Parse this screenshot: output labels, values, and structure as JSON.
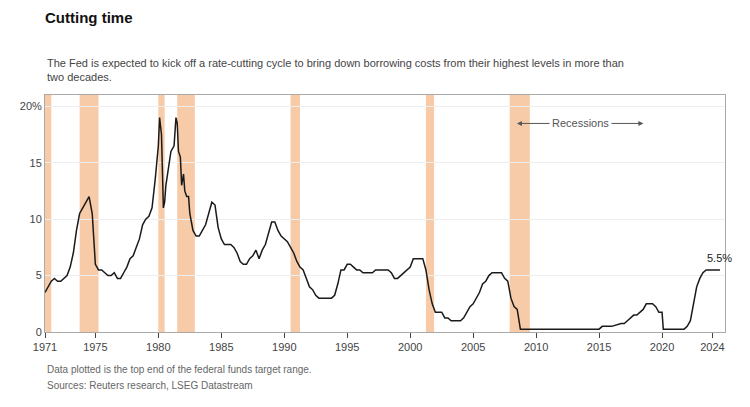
{
  "chart_data": {
    "type": "line",
    "title": "Cutting time",
    "subtitle": "The Fed is expected to kick off a rate-cutting cycle to bring down borrowing costs from their highest levels in more than\ntwo decades.",
    "footnotes": [
      "Data plotted is the top end of the federal funds target range.",
      "Sources: Reuters research, LSEG Datastream"
    ],
    "recession_label": "Recessions",
    "annotation": "5.5%",
    "recession_bands": [
      [
        1971.0,
        1971.5
      ],
      [
        1973.75,
        1975.25
      ],
      [
        1980.0,
        1980.5
      ],
      [
        1981.5,
        1982.9
      ],
      [
        1990.5,
        1991.25
      ],
      [
        2001.25,
        2001.9
      ],
      [
        2007.9,
        2009.5
      ]
    ],
    "recession_color": "#f7cba8",
    "color": "#1a1a1a",
    "x": [
      1971.0,
      1971.25,
      1971.5,
      1971.75,
      1972.0,
      1972.25,
      1972.5,
      1972.75,
      1973.0,
      1973.25,
      1973.5,
      1973.75,
      1974.0,
      1974.25,
      1974.5,
      1974.75,
      1975.0,
      1975.25,
      1975.5,
      1975.75,
      1976.0,
      1976.25,
      1976.5,
      1976.75,
      1977.0,
      1977.25,
      1977.5,
      1977.75,
      1978.0,
      1978.25,
      1978.5,
      1978.75,
      1979.0,
      1979.25,
      1979.5,
      1979.75,
      1980.0,
      1980.1,
      1980.25,
      1980.4,
      1980.5,
      1980.6,
      1980.75,
      1981.0,
      1981.25,
      1981.4,
      1981.5,
      1981.6,
      1981.75,
      1981.85,
      1982.0,
      1982.1,
      1982.25,
      1982.4,
      1982.5,
      1982.75,
      1983.0,
      1983.25,
      1983.5,
      1983.75,
      1984.0,
      1984.25,
      1984.5,
      1984.75,
      1985.0,
      1985.25,
      1985.5,
      1985.75,
      1986.0,
      1986.25,
      1986.5,
      1986.75,
      1987.0,
      1987.25,
      1987.5,
      1987.75,
      1988.0,
      1988.25,
      1988.5,
      1988.75,
      1989.0,
      1989.25,
      1989.5,
      1989.75,
      1990.0,
      1990.25,
      1990.5,
      1990.75,
      1991.0,
      1991.25,
      1991.5,
      1991.75,
      1992.0,
      1992.25,
      1992.5,
      1992.75,
      1993.0,
      1993.25,
      1993.5,
      1993.75,
      1994.0,
      1994.25,
      1994.5,
      1994.75,
      1995.0,
      1995.25,
      1995.5,
      1995.75,
      1996.0,
      1996.25,
      1996.5,
      1996.75,
      1997.0,
      1997.25,
      1997.5,
      1997.75,
      1998.0,
      1998.25,
      1998.5,
      1998.75,
      1999.0,
      1999.25,
      1999.5,
      1999.75,
      2000.0,
      2000.25,
      2000.5,
      2000.75,
      2001.0,
      2001.25,
      2001.5,
      2001.75,
      2002.0,
      2002.25,
      2002.5,
      2002.75,
      2003.0,
      2003.25,
      2003.5,
      2003.75,
      2004.0,
      2004.25,
      2004.5,
      2004.75,
      2005.0,
      2005.25,
      2005.5,
      2005.75,
      2006.0,
      2006.25,
      2006.5,
      2006.75,
      2007.0,
      2007.25,
      2007.5,
      2007.75,
      2008.0,
      2008.25,
      2008.5,
      2008.75,
      2009.0,
      2009.5,
      2009.75,
      2010.0,
      2011.0,
      2012.0,
      2013.0,
      2014.0,
      2015.0,
      2015.25,
      2015.75,
      2016.0,
      2016.75,
      2017.0,
      2017.25,
      2017.5,
      2017.75,
      2018.0,
      2018.25,
      2018.5,
      2018.75,
      2019.0,
      2019.25,
      2019.5,
      2019.75,
      2020.0,
      2020.1,
      2020.25,
      2021.75,
      2022.0,
      2022.25,
      2022.5,
      2022.75,
      2023.0,
      2023.25,
      2023.5,
      2023.75,
      2024.0,
      2024.6
    ],
    "values": [
      3.5,
      4.0,
      4.5,
      4.75,
      4.5,
      4.5,
      4.75,
      5.0,
      5.75,
      7.0,
      9.0,
      10.5,
      11.0,
      11.5,
      12.0,
      10.5,
      6.0,
      5.5,
      5.5,
      5.25,
      5.0,
      5.0,
      5.25,
      4.75,
      4.75,
      5.25,
      5.75,
      6.5,
      6.75,
      7.5,
      8.25,
      9.5,
      10.0,
      10.25,
      11.0,
      13.5,
      16.5,
      19.0,
      17.5,
      11.0,
      11.5,
      13.0,
      14.0,
      16.0,
      16.5,
      19.0,
      18.5,
      16.0,
      15.5,
      13.0,
      14.0,
      12.5,
      12.0,
      12.0,
      10.5,
      9.0,
      8.5,
      8.5,
      9.0,
      9.5,
      10.5,
      11.5,
      11.25,
      9.25,
      8.25,
      7.75,
      7.75,
      7.75,
      7.5,
      7.0,
      6.25,
      6.0,
      6.0,
      6.5,
      6.75,
      7.25,
      6.5,
      7.25,
      7.75,
      8.75,
      9.75,
      9.75,
      9.0,
      8.5,
      8.25,
      8.0,
      7.5,
      7.0,
      6.25,
      5.75,
      5.5,
      4.75,
      4.0,
      3.75,
      3.25,
      3.0,
      3.0,
      3.0,
      3.0,
      3.0,
      3.25,
      4.25,
      5.5,
      5.5,
      6.0,
      6.0,
      5.75,
      5.5,
      5.5,
      5.25,
      5.25,
      5.25,
      5.25,
      5.5,
      5.5,
      5.5,
      5.5,
      5.5,
      5.25,
      4.75,
      4.75,
      5.0,
      5.25,
      5.5,
      5.75,
      6.5,
      6.5,
      6.5,
      6.5,
      5.5,
      3.75,
      2.5,
      1.75,
      1.75,
      1.75,
      1.25,
      1.25,
      1.0,
      1.0,
      1.0,
      1.0,
      1.25,
      1.75,
      2.25,
      2.5,
      3.0,
      3.5,
      4.25,
      4.5,
      5.0,
      5.25,
      5.25,
      5.25,
      5.25,
      4.75,
      4.5,
      3.0,
      2.25,
      2.0,
      0.25,
      0.25,
      0.25,
      0.25,
      0.25,
      0.25,
      0.25,
      0.25,
      0.25,
      0.25,
      0.5,
      0.5,
      0.5,
      0.75,
      0.75,
      1.0,
      1.25,
      1.5,
      1.5,
      1.75,
      2.0,
      2.5,
      2.5,
      2.5,
      2.25,
      1.75,
      1.75,
      0.25,
      0.25,
      0.25,
      0.5,
      1.0,
      2.5,
      4.0,
      4.75,
      5.25,
      5.5,
      5.5,
      5.5,
      5.5
    ],
    "xlim": [
      1971,
      2025
    ],
    "ylim": [
      0,
      21
    ],
    "xticks": [
      1971,
      1975,
      1980,
      1985,
      1990,
      1995,
      2000,
      2005,
      2010,
      2015,
      2020,
      2024
    ],
    "yticks": [
      0,
      5,
      10,
      15,
      {
        "value": 20,
        "label": "20%"
      }
    ],
    "grid": "y"
  }
}
